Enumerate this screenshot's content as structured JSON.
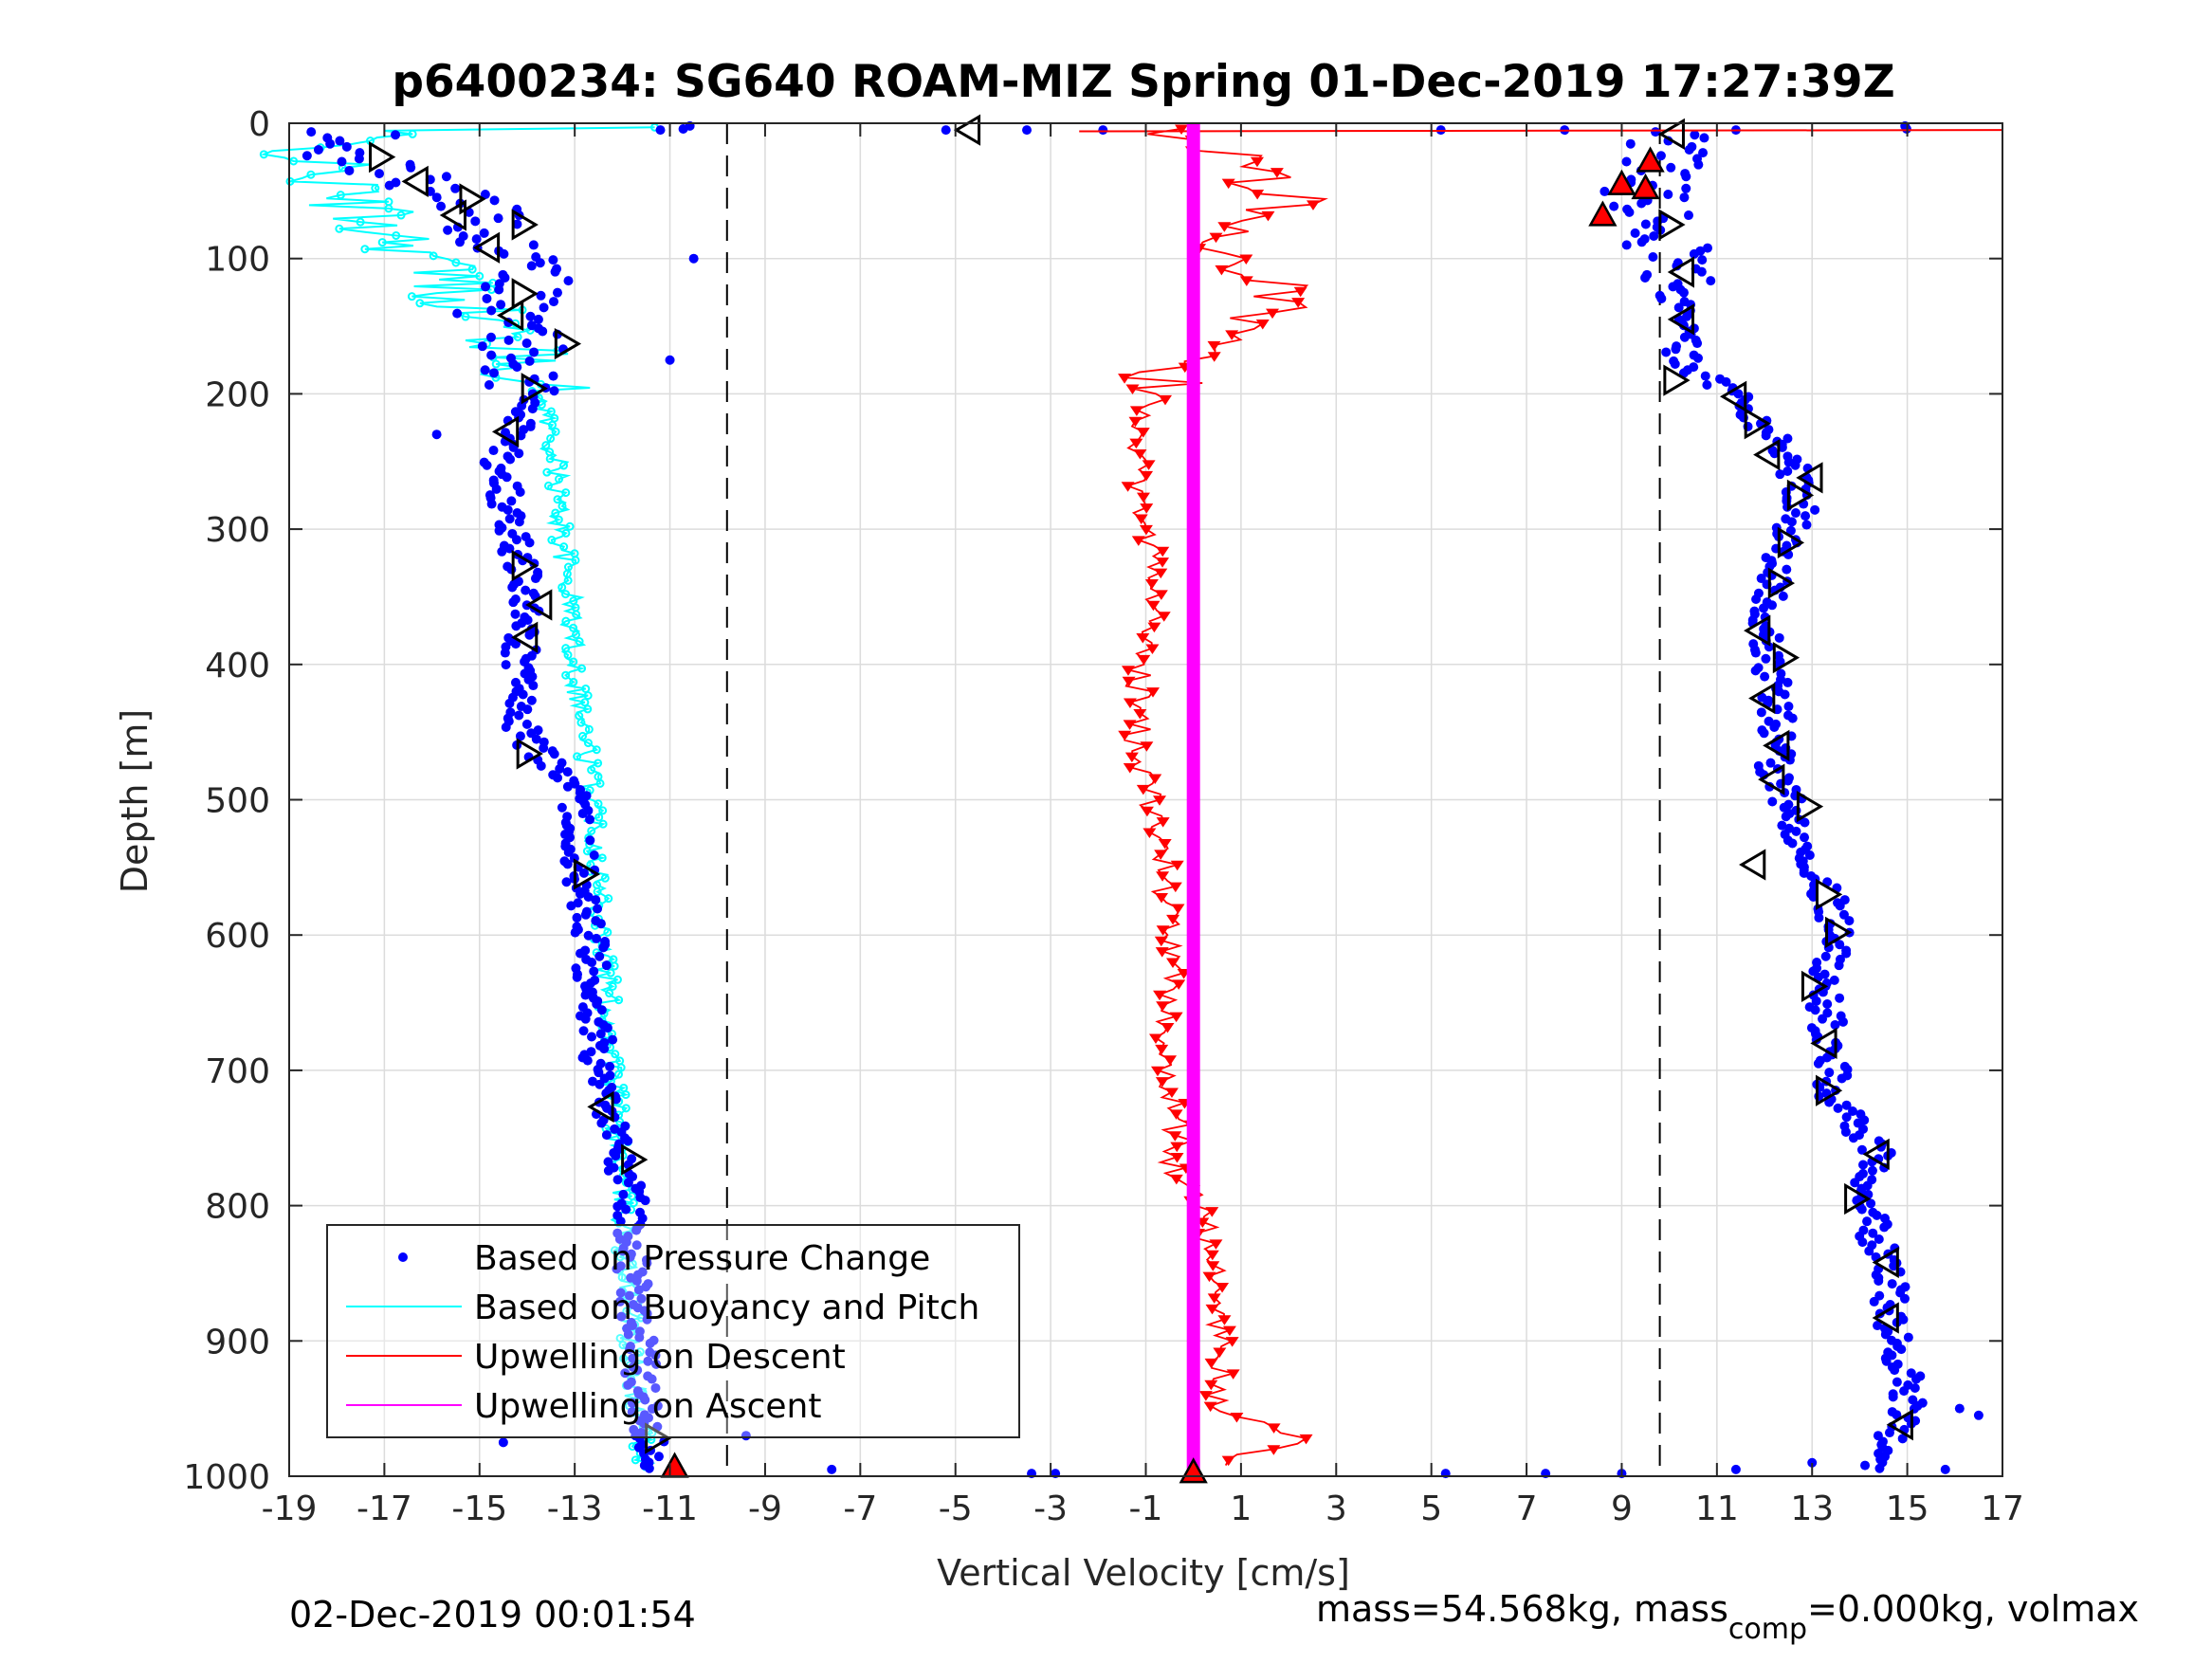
{
  "chart_data": {
    "type": "scatter",
    "title": "p6400234: SG640 ROAM-MIZ Spring 01-Dec-2019 17:27:39Z",
    "xlabel": "Vertical Velocity [cm/s]",
    "ylabel": "Depth [m]",
    "xlim": [
      -19,
      17
    ],
    "ylim": [
      0,
      1000
    ],
    "y_reversed": true,
    "grid": true,
    "xticks": [
      -19,
      -17,
      -15,
      -13,
      -11,
      -9,
      -7,
      -5,
      -3,
      -1,
      1,
      3,
      5,
      7,
      9,
      11,
      13,
      15,
      17
    ],
    "yticks": [
      0,
      100,
      200,
      300,
      400,
      500,
      600,
      700,
      800,
      900,
      1000
    ],
    "legend_position": "bottom-left",
    "reference_lines": [
      {
        "x": -9.8,
        "style": "dashed",
        "color": "#000000"
      },
      {
        "x": 9.8,
        "style": "dashed",
        "color": "#000000"
      }
    ],
    "series": [
      {
        "name": "Based on Pressure Change",
        "color": "#0000FF",
        "kind": "points",
        "descent": {
          "depth": [
            5,
            20,
            40,
            60,
            80,
            100,
            120,
            140,
            160,
            180,
            200,
            250,
            300,
            350,
            400,
            450,
            500,
            550,
            600,
            650,
            700,
            750,
            800,
            850,
            900,
            950,
            990
          ],
          "velocity": [
            -17.5,
            -18.2,
            -16.5,
            -15.2,
            -14.8,
            -14.3,
            -13.9,
            -14.5,
            -14.1,
            -14.2,
            -13.9,
            -14.6,
            -14.3,
            -14.0,
            -14.2,
            -14.1,
            -13.0,
            -12.9,
            -12.7,
            -12.6,
            -12.5,
            -12.1,
            -11.8,
            -11.8,
            -11.6,
            -11.6,
            -11.3
          ]
        },
        "ascent": {
          "depth": [
            990,
            960,
            930,
            900,
            850,
            800,
            760,
            720,
            680,
            640,
            600,
            560,
            520,
            480,
            440,
            400,
            360,
            320,
            280,
            250,
            220,
            200,
            180,
            150,
            120,
            100,
            80,
            60,
            40,
            20,
            5
          ],
          "velocity": [
            14.3,
            14.9,
            15.1,
            14.7,
            14.6,
            14.1,
            14.4,
            13.4,
            13.4,
            13.2,
            13.6,
            13.2,
            12.7,
            12.2,
            12.3,
            12.1,
            12.1,
            12.2,
            12.8,
            12.6,
            11.9,
            11.4,
            10.3,
            10.2,
            10.1,
            10.1,
            9.9,
            9.4,
            9.5,
            10.1,
            10.0
          ]
        },
        "outliers": {
          "depth": [
            5,
            5,
            5,
            5,
            5,
            100,
            175,
            230,
            970,
            975,
            995,
            998,
            998,
            998,
            998,
            998,
            5,
            5,
            995,
            995,
            990,
            955,
            950
          ],
          "velocity": [
            -11.2,
            -3.5,
            -5.2,
            -1.9,
            5.2,
            -10.5,
            -11.0,
            -15.9,
            -9.4,
            -14.5,
            -7.6,
            -3.4,
            -2.9,
            5.3,
            7.4,
            9.0,
            7.8,
            11.4,
            11.4,
            15.8,
            13.0,
            16.5,
            16.1
          ]
        }
      },
      {
        "name": "Based on Buoyancy and Pitch",
        "color": "#00FFFF",
        "kind": "line",
        "depth": [
          5,
          20,
          40,
          60,
          80,
          100,
          120,
          140,
          160,
          180,
          200,
          250,
          300,
          350,
          400,
          450,
          500,
          550,
          600,
          650,
          700,
          750,
          800,
          850,
          900,
          950,
          990
        ],
        "velocity": [
          -17.0,
          -18.6,
          -18.2,
          -17.6,
          -16.9,
          -16.0,
          -15.6,
          -15.0,
          -14.4,
          -14.0,
          -13.7,
          -13.4,
          -13.3,
          -13.1,
          -13.0,
          -12.8,
          -12.6,
          -12.5,
          -12.4,
          -12.3,
          -12.2,
          -12.1,
          -12.0,
          -11.9,
          -11.8,
          -11.7,
          -11.5
        ]
      },
      {
        "name": "Upwelling on Descent",
        "color": "#FF0000",
        "kind": "line-markers",
        "depth": [
          5,
          10,
          30,
          50,
          60,
          70,
          80,
          100,
          120,
          140,
          160,
          180,
          200,
          250,
          300,
          350,
          400,
          450,
          500,
          550,
          600,
          650,
          700,
          750,
          780,
          800,
          850,
          900,
          950,
          975,
          985,
          995
        ],
        "velocity": [
          -1.5,
          0.5,
          1.0,
          1.8,
          2.0,
          1.2,
          0.8,
          0.8,
          1.6,
          1.5,
          0.3,
          -0.5,
          -0.8,
          -1.2,
          -0.9,
          -0.8,
          -1.1,
          -1.2,
          -0.9,
          -0.6,
          -0.5,
          -0.5,
          -0.6,
          -0.3,
          -0.5,
          0.3,
          0.4,
          0.6,
          0.5,
          2.4,
          0.9,
          0.3
        ]
      },
      {
        "name": "Upwelling on Ascent",
        "color": "#FF00FF",
        "kind": "line",
        "depth": [
          0,
          1000
        ],
        "velocity": [
          0.0,
          0.0
        ]
      }
    ],
    "pitch_markers": {
      "color": "#000000",
      "left_side": [
        {
          "velocity": -17.1,
          "depth": 25,
          "dir": "right"
        },
        {
          "velocity": -16.3,
          "depth": 43,
          "dir": "left"
        },
        {
          "velocity": -15.2,
          "depth": 56,
          "dir": "right"
        },
        {
          "velocity": -15.5,
          "depth": 68,
          "dir": "left"
        },
        {
          "velocity": -14.1,
          "depth": 75,
          "dir": "right"
        },
        {
          "velocity": -14.8,
          "depth": 92,
          "dir": "left"
        },
        {
          "velocity": -14.1,
          "depth": 126,
          "dir": "right"
        },
        {
          "velocity": -14.3,
          "depth": 142,
          "dir": "left"
        },
        {
          "velocity": -13.2,
          "depth": 163,
          "dir": "right"
        },
        {
          "velocity": -13.9,
          "depth": 196,
          "dir": "right"
        },
        {
          "velocity": -14.4,
          "depth": 228,
          "dir": "left"
        },
        {
          "velocity": -14.1,
          "depth": 327,
          "dir": "right"
        },
        {
          "velocity": -13.7,
          "depth": 356,
          "dir": "left"
        },
        {
          "velocity": -14.0,
          "depth": 380,
          "dir": "left"
        },
        {
          "velocity": -14.0,
          "depth": 466,
          "dir": "right"
        },
        {
          "velocity": -12.8,
          "depth": 555,
          "dir": "right"
        },
        {
          "velocity": -12.4,
          "depth": 727,
          "dir": "left"
        },
        {
          "velocity": -11.8,
          "depth": 766,
          "dir": "right"
        },
        {
          "velocity": -11.3,
          "depth": 972,
          "dir": "right"
        },
        {
          "velocity": -4.7,
          "depth": 5,
          "dir": "left"
        }
      ],
      "right_side": [
        {
          "velocity": 10.1,
          "depth": 8,
          "dir": "left"
        },
        {
          "velocity": 10.0,
          "depth": 75,
          "dir": "right"
        },
        {
          "velocity": 10.3,
          "depth": 110,
          "dir": "left"
        },
        {
          "velocity": 10.3,
          "depth": 145,
          "dir": "left"
        },
        {
          "velocity": 10.1,
          "depth": 190,
          "dir": "right"
        },
        {
          "velocity": 11.4,
          "depth": 202,
          "dir": "left"
        },
        {
          "velocity": 11.8,
          "depth": 222,
          "dir": "right"
        },
        {
          "velocity": 12.1,
          "depth": 245,
          "dir": "left"
        },
        {
          "velocity": 13.0,
          "depth": 262,
          "dir": "left"
        },
        {
          "velocity": 12.7,
          "depth": 275,
          "dir": "right"
        },
        {
          "velocity": 12.5,
          "depth": 310,
          "dir": "right"
        },
        {
          "velocity": 12.3,
          "depth": 340,
          "dir": "right"
        },
        {
          "velocity": 11.9,
          "depth": 375,
          "dir": "left"
        },
        {
          "velocity": 12.4,
          "depth": 395,
          "dir": "right"
        },
        {
          "velocity": 12.0,
          "depth": 425,
          "dir": "left"
        },
        {
          "velocity": 12.3,
          "depth": 460,
          "dir": "left"
        },
        {
          "velocity": 12.2,
          "depth": 485,
          "dir": "left"
        },
        {
          "velocity": 12.9,
          "depth": 505,
          "dir": "right"
        },
        {
          "velocity": 11.8,
          "depth": 548,
          "dir": "left"
        },
        {
          "velocity": 13.3,
          "depth": 570,
          "dir": "right"
        },
        {
          "velocity": 13.5,
          "depth": 598,
          "dir": "right"
        },
        {
          "velocity": 13.0,
          "depth": 638,
          "dir": "right"
        },
        {
          "velocity": 13.3,
          "depth": 680,
          "dir": "left"
        },
        {
          "velocity": 13.3,
          "depth": 715,
          "dir": "right"
        },
        {
          "velocity": 14.4,
          "depth": 762,
          "dir": "left"
        },
        {
          "velocity": 13.9,
          "depth": 795,
          "dir": "right"
        },
        {
          "velocity": 14.6,
          "depth": 842,
          "dir": "left"
        },
        {
          "velocity": 14.6,
          "depth": 883,
          "dir": "left"
        },
        {
          "velocity": 14.9,
          "depth": 962,
          "dir": "left"
        }
      ]
    },
    "flag_markers": {
      "color": "#FF0000",
      "points": [
        {
          "velocity": 9.6,
          "depth": 28
        },
        {
          "velocity": 9.0,
          "depth": 45
        },
        {
          "velocity": 9.5,
          "depth": 48
        },
        {
          "velocity": 8.6,
          "depth": 68
        },
        {
          "velocity": -10.9,
          "depth": 993
        },
        {
          "velocity": 0.0,
          "depth": 997
        }
      ]
    }
  },
  "footer": {
    "left": "02-Dec-2019 00:01:54",
    "right_pre": "mass=54.568kg, mass",
    "right_sub": "comp",
    "right_post": "=0.000kg, volmax"
  }
}
